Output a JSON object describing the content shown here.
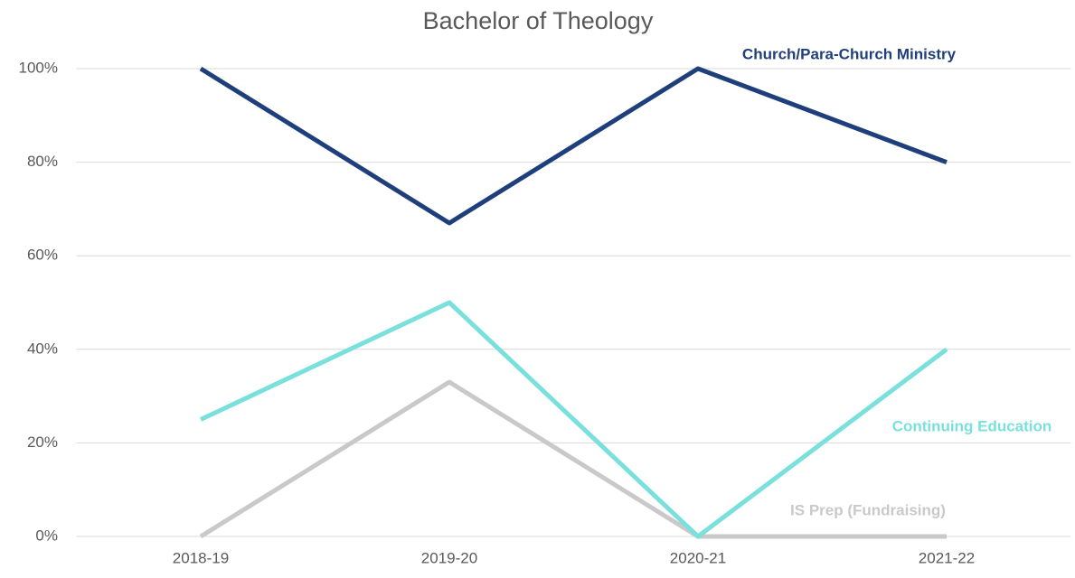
{
  "chart_data": {
    "type": "line",
    "title": "Bachelor of Theology",
    "categories": [
      "2018-19",
      "2019-20",
      "2020-21",
      "2021-22"
    ],
    "series": [
      {
        "name": "Church/Para-Church Ministry",
        "color": "#1f3f7c",
        "values": [
          100,
          67,
          100,
          80
        ]
      },
      {
        "name": "Continuing Education",
        "color": "#7ae0dc",
        "values": [
          25,
          50,
          0,
          40
        ]
      },
      {
        "name": "IS Prep (Fundraising)",
        "color": "#c9c9c9",
        "values": [
          0,
          33,
          0,
          0
        ]
      }
    ],
    "ylim": [
      0,
      100
    ],
    "yticks": [
      {
        "value": 0,
        "label": "0%"
      },
      {
        "value": 20,
        "label": "20%"
      },
      {
        "value": 40,
        "label": "40%"
      },
      {
        "value": 60,
        "label": "60%"
      },
      {
        "value": 80,
        "label": "80%"
      },
      {
        "value": 100,
        "label": "100%"
      }
    ],
    "grid": true
  }
}
